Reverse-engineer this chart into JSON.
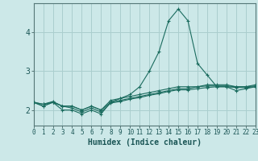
{
  "xlabel": "Humidex (Indice chaleur)",
  "x": [
    0,
    1,
    2,
    3,
    4,
    5,
    6,
    7,
    8,
    9,
    10,
    11,
    12,
    13,
    14,
    15,
    16,
    17,
    18,
    19,
    20,
    21,
    22,
    23
  ],
  "line1": [
    2.2,
    2.1,
    2.2,
    2.0,
    2.0,
    1.9,
    2.0,
    1.9,
    2.2,
    2.3,
    2.4,
    2.6,
    3.0,
    3.5,
    4.3,
    4.6,
    4.3,
    3.2,
    2.9,
    2.6,
    2.6,
    2.5,
    2.55,
    2.6
  ],
  "line2": [
    2.2,
    2.1,
    2.2,
    2.1,
    2.1,
    2.0,
    2.1,
    2.0,
    2.25,
    2.3,
    2.35,
    2.4,
    2.45,
    2.5,
    2.55,
    2.6,
    2.6,
    2.6,
    2.65,
    2.65,
    2.65,
    2.6,
    2.6,
    2.65
  ],
  "line3": [
    2.2,
    2.15,
    2.2,
    2.1,
    2.1,
    2.0,
    2.1,
    2.0,
    2.2,
    2.25,
    2.3,
    2.35,
    2.4,
    2.45,
    2.5,
    2.55,
    2.55,
    2.6,
    2.62,
    2.62,
    2.62,
    2.6,
    2.6,
    2.62
  ],
  "line4": [
    2.2,
    2.15,
    2.22,
    2.1,
    2.05,
    1.95,
    2.05,
    1.95,
    2.18,
    2.22,
    2.28,
    2.32,
    2.38,
    2.42,
    2.48,
    2.52,
    2.52,
    2.55,
    2.58,
    2.6,
    2.6,
    2.58,
    2.58,
    2.6
  ],
  "line_color": "#1a6b5e",
  "bg_color": "#cce8e8",
  "grid_color": "#aacece",
  "spine_color": "#557777",
  "tick_color": "#1a5555",
  "ylim": [
    1.6,
    4.75
  ],
  "xlim": [
    0,
    23
  ],
  "yticks": [
    2,
    3,
    4
  ],
  "xticks": [
    0,
    1,
    2,
    3,
    4,
    5,
    6,
    7,
    8,
    9,
    10,
    11,
    12,
    13,
    14,
    15,
    16,
    17,
    18,
    19,
    20,
    21,
    22,
    23
  ]
}
